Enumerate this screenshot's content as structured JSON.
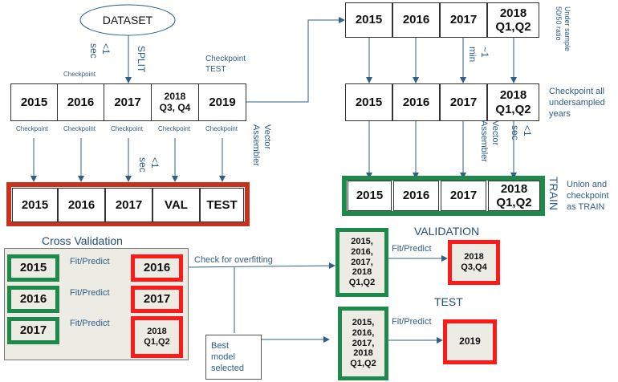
{
  "dataset": "DATASET",
  "split_row": {
    "years": [
      "2015",
      "2016",
      "2017",
      "2018\nQ3, Q4",
      "2019"
    ],
    "checkpoint_small": "Checkpoint",
    "split_label": "SPLIT",
    "split_time": "<1\nsec",
    "checkpoint_test": "Checkpoint\nTEST"
  },
  "assembled_row": {
    "items": [
      "2015",
      "2016",
      "2017",
      "VAL",
      "TEST"
    ],
    "vector_assembler": "Vector\nAssembler",
    "assembler_time": "<1\nsec"
  },
  "undersample_row": {
    "years": [
      "2015",
      "2016",
      "2017",
      "2018\nQ1,Q2"
    ],
    "note": "Under sample\n50/50 ratio",
    "time": "~1\nmin"
  },
  "checkpoint_row": {
    "years": [
      "2015",
      "2016",
      "2017",
      "2018\nQ1,Q2"
    ],
    "note": "Checkpoint all\nundersampled\nyears",
    "vector_assembler": "Vector\nAssembler",
    "time": "<1\nsec"
  },
  "train_row": {
    "years": [
      "2015",
      "2016",
      "2017",
      "2018\nQ1,Q2"
    ],
    "label": "TRAIN",
    "note": "Union and\ncheckpoint\nas TRAIN"
  },
  "cross_validation": {
    "title": "Cross Validation",
    "fit_predict": "Fit/Predict",
    "pairs": [
      {
        "train": "2015",
        "test": "2016"
      },
      {
        "train": "2016",
        "test": "2017"
      },
      {
        "train": "2017",
        "test": "2018\nQ1,Q2"
      }
    ]
  },
  "overfitting_label": "Check for overfitting",
  "best_model": "Best\nmodel\nselected",
  "validation": {
    "title": "VALIDATION",
    "train": "2015,\n2016,\n2017,\n2018\nQ1,Q2",
    "fit_predict": "Fit/Predict",
    "result": "2018\nQ3,Q4"
  },
  "test": {
    "title": "TEST",
    "train": "2015,\n2016,\n2017,\n2018\nQ1,Q2",
    "fit_predict": "Fit/Predict",
    "result": "2019"
  },
  "colors": {
    "red": "#c8321c",
    "green": "#1d8a4c",
    "bright_red": "#ff1a1a",
    "arrow": "#2f5f86"
  }
}
